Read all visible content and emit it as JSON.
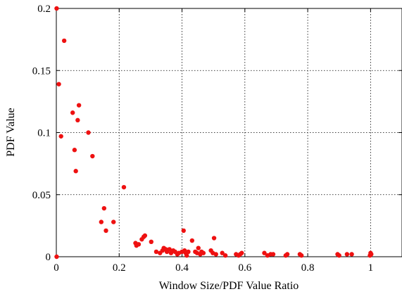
{
  "chart_data": {
    "type": "scatter",
    "title": "",
    "xlabel": "Window Size/PDF Value Ratio",
    "ylabel": "PDF Value",
    "xlim": [
      0,
      1.1
    ],
    "ylim": [
      0,
      0.2
    ],
    "x_ticks": [
      0,
      0.2,
      0.4,
      0.6,
      0.8,
      1
    ],
    "x_tick_labels": [
      "0",
      "0.2",
      "0.4",
      "0.6",
      "0.8",
      "1"
    ],
    "y_ticks": [
      0,
      0.05,
      0.1,
      0.15,
      0.2
    ],
    "y_tick_labels": [
      "0",
      "0.05",
      "0.1",
      "0.15",
      "0.2"
    ],
    "grid": true,
    "legend": "none",
    "point_color": "#ee1111",
    "series": [
      {
        "x": [
          0.001,
          0.001,
          0.008,
          0.015,
          0.025,
          0.052,
          0.058,
          0.062,
          0.068,
          0.072,
          0.102,
          0.115,
          0.143,
          0.152,
          0.158,
          0.182,
          0.215,
          0.252,
          0.255,
          0.262,
          0.272,
          0.278,
          0.282,
          0.302,
          0.318,
          0.33,
          0.338,
          0.342,
          0.348,
          0.352,
          0.36,
          0.365,
          0.372,
          0.378,
          0.385,
          0.39,
          0.4,
          0.405,
          0.408,
          0.412,
          0.415,
          0.42,
          0.432,
          0.442,
          0.448,
          0.452,
          0.458,
          0.462,
          0.468,
          0.492,
          0.498,
          0.502,
          0.508,
          0.528,
          0.538,
          0.572,
          0.58,
          0.585,
          0.59,
          0.662,
          0.672,
          0.682,
          0.69,
          0.73,
          0.735,
          0.775,
          0.78,
          0.895,
          0.9,
          0.925,
          0.94,
          0.998,
          1.0,
          1.002
        ],
        "y": [
          0.2,
          0.0,
          0.139,
          0.097,
          0.174,
          0.116,
          0.086,
          0.069,
          0.11,
          0.122,
          0.1,
          0.081,
          0.028,
          0.039,
          0.021,
          0.028,
          0.056,
          0.011,
          0.009,
          0.01,
          0.014,
          0.016,
          0.017,
          0.012,
          0.004,
          0.003,
          0.005,
          0.007,
          0.006,
          0.004,
          0.006,
          0.003,
          0.005,
          0.004,
          0.002,
          0.003,
          0.004,
          0.021,
          0.005,
          0.003,
          0.001,
          0.004,
          0.013,
          0.004,
          0.003,
          0.007,
          0.002,
          0.004,
          0.003,
          0.005,
          0.003,
          0.015,
          0.002,
          0.003,
          0.001,
          0.002,
          0.001,
          0.002,
          0.003,
          0.003,
          0.001,
          0.002,
          0.002,
          0.001,
          0.002,
          0.002,
          0.001,
          0.002,
          0.001,
          0.002,
          0.002,
          0.001,
          0.003,
          0.002
        ]
      }
    ]
  }
}
